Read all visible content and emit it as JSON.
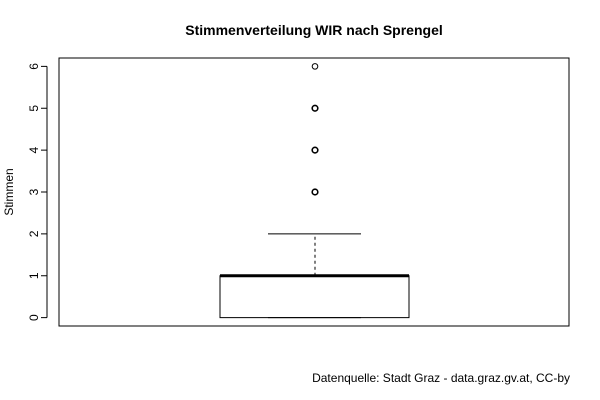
{
  "chart_data": {
    "type": "boxplot",
    "title": "Stimmenverteilung WIR nach Sprengel",
    "ylabel": "Stimmen",
    "xlabel": "",
    "ylim": [
      -0.2,
      6.2
    ],
    "yticks": [
      "0",
      "1",
      "2",
      "3",
      "4",
      "5",
      "6"
    ],
    "box": {
      "min": 0,
      "q1": 0,
      "median": 1,
      "q3": 1,
      "whisker_high": 2,
      "outliers": [
        3,
        4,
        5,
        6
      ]
    },
    "grid": false,
    "colors": {
      "box_fill": "#ffffff",
      "stroke": "#000000",
      "whisker_cap": "#000000"
    }
  },
  "caption": "Datenquelle: Stadt Graz - data.graz.gv.at, CC-by"
}
